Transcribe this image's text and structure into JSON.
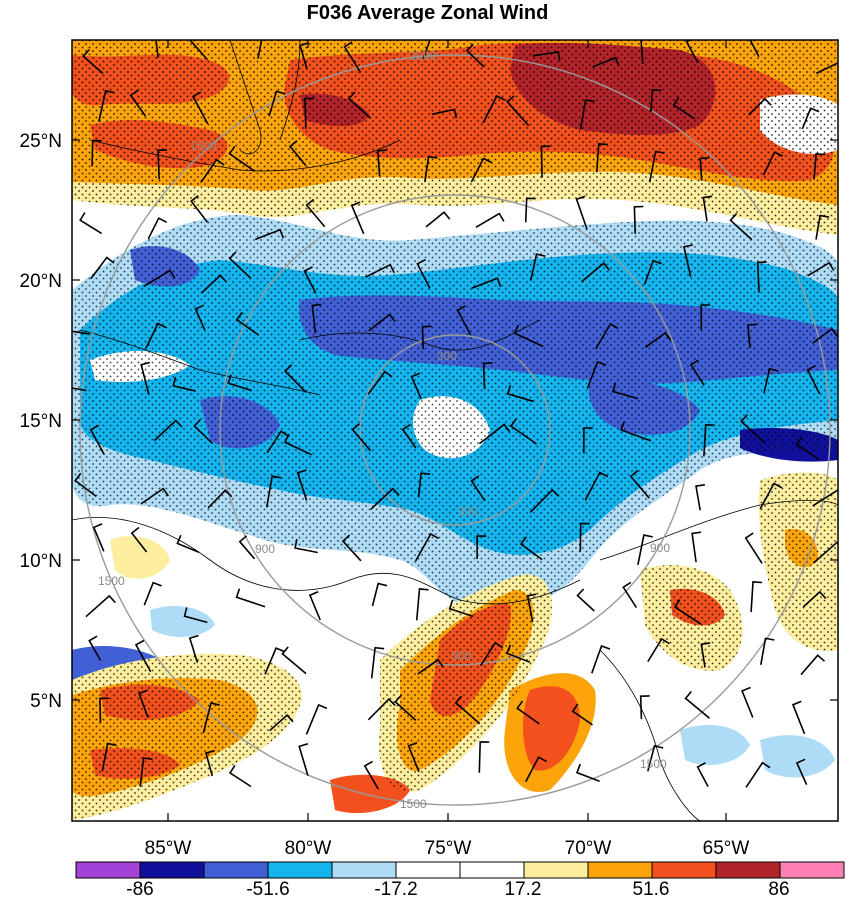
{
  "title": "F036 Average Zonal Wind",
  "map": {
    "lat_ticks": [
      "25°N",
      "20°N",
      "15°N",
      "10°N",
      "5°N"
    ],
    "lon_ticks": [
      "85°W",
      "80°W",
      "75°W",
      "70°W",
      "65°W"
    ],
    "range_ring_labels": [
      "300",
      "300",
      "900",
      "900",
      "900",
      "1500",
      "1500",
      "1500",
      "1500",
      "1500"
    ]
  },
  "colorbar": {
    "colors": [
      "#a342d6",
      "#10109a",
      "#4260d6",
      "#14b4ee",
      "#aedcf6",
      "#ffffff",
      "#ffffff",
      "#fcee9e",
      "#fca40a",
      "#f2501c",
      "#b2242a",
      "#fc80b4"
    ],
    "labels": [
      "-86",
      "-51.6",
      "-17.2",
      "17.2",
      "51.6",
      "86"
    ]
  },
  "colors": {
    "dark_red": "#b2242a",
    "red": "#f2501c",
    "orange": "#fca40a",
    "yellow": "#fcee9e",
    "light_blue": "#aedcf6",
    "cyan": "#14b4ee",
    "blue": "#4260d6",
    "navy": "#10109a",
    "white": "#ffffff",
    "ring": "#9a9a9a"
  }
}
